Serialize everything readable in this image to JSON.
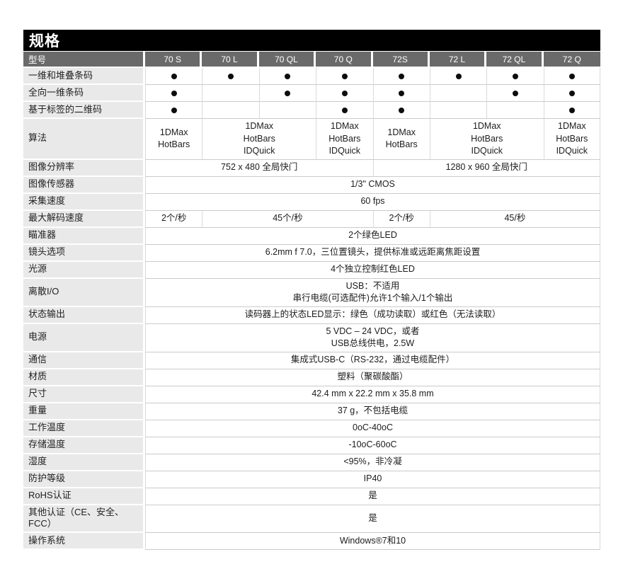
{
  "title": "规格",
  "colors": {
    "title_bar_bg": "#000000",
    "header_row_bg": "#6a6a6a",
    "label_cell_bg": "#e9e9e9",
    "grid_line": "#cbcbcb",
    "bullet": "#0d0d0d"
  },
  "table": {
    "header": {
      "label": "型号",
      "models": [
        "70 S",
        "70 L",
        "70 QL",
        "70 Q",
        "72S",
        "72 L",
        "72 QL",
        "72 Q"
      ]
    },
    "rows": [
      {
        "label": "一维和堆叠条码",
        "type": "bullets",
        "flags": [
          1,
          1,
          1,
          1,
          1,
          1,
          1,
          1
        ]
      },
      {
        "label": "全向一维条码",
        "type": "bullets",
        "flags": [
          1,
          0,
          1,
          1,
          1,
          0,
          1,
          1
        ]
      },
      {
        "label": "基于标签的二维码",
        "type": "bullets",
        "flags": [
          1,
          0,
          0,
          1,
          1,
          0,
          0,
          1
        ]
      },
      {
        "label": "算法",
        "cells": [
          {
            "span": 1,
            "lines": [
              "1DMax",
              "HotBars"
            ]
          },
          {
            "span": 2,
            "lines": [
              "1DMax",
              "HotBars",
              "IDQuick"
            ]
          },
          {
            "span": 1,
            "lines": [
              "1DMax",
              "HotBars",
              "IDQuick"
            ]
          },
          {
            "span": 1,
            "lines": [
              "1DMax",
              "HotBars"
            ]
          },
          {
            "span": 2,
            "lines": [
              "1DMax",
              "HotBars",
              "IDQuick"
            ]
          },
          {
            "span": 1,
            "lines": [
              "1DMax",
              "HotBars",
              "IDQuick"
            ]
          }
        ]
      },
      {
        "label": "图像分辨率",
        "cells": [
          {
            "span": 4,
            "text": "752 x 480 全局快门"
          },
          {
            "span": 4,
            "text": "1280 x 960 全局快门"
          }
        ]
      },
      {
        "label": "图像传感器",
        "cells": [
          {
            "span": 8,
            "text": "1/3\" CMOS"
          }
        ]
      },
      {
        "label": "采集速度",
        "cells": [
          {
            "span": 8,
            "text": "60 fps"
          }
        ]
      },
      {
        "label": "最大解码速度",
        "cells": [
          {
            "span": 1,
            "text": "2个/秒"
          },
          {
            "span": 3,
            "text": "45个/秒"
          },
          {
            "span": 1,
            "text": "2个/秒"
          },
          {
            "span": 3,
            "text": "45/秒"
          }
        ]
      },
      {
        "label": "瞄准器",
        "cells": [
          {
            "span": 8,
            "text": "2个绿色LED"
          }
        ]
      },
      {
        "label": "镜头选项",
        "cells": [
          {
            "span": 8,
            "text": "6.2mm f 7.0，三位置镜头，提供标准或远距离焦距设置"
          }
        ]
      },
      {
        "label": "光源",
        "cells": [
          {
            "span": 8,
            "text": "4个独立控制红色LED"
          }
        ]
      },
      {
        "label": "离散I/O",
        "cells": [
          {
            "span": 8,
            "lines": [
              "USB：不适用",
              "串行电缆(可选配件)允许1个输入/1个输出"
            ]
          }
        ]
      },
      {
        "label": "状态输出",
        "cells": [
          {
            "span": 8,
            "text": "读码器上的状态LED显示：绿色（成功读取）或红色（无法读取）"
          }
        ]
      },
      {
        "label": "电源",
        "cells": [
          {
            "span": 8,
            "lines": [
              "5 VDC – 24 VDC，或者",
              "USB总线供电，2.5W"
            ]
          }
        ]
      },
      {
        "label": "通信",
        "cells": [
          {
            "span": 8,
            "text": "集成式USB-C（RS-232，通过电缆配件）"
          }
        ]
      },
      {
        "label": "材质",
        "cells": [
          {
            "span": 8,
            "text": "塑料（聚碳酸酯）"
          }
        ]
      },
      {
        "label": "尺寸",
        "cells": [
          {
            "span": 8,
            "text": "42.4 mm x 22.2 mm x 35.8 mm"
          }
        ]
      },
      {
        "label": "重量",
        "cells": [
          {
            "span": 8,
            "text": "37 g，不包括电缆"
          }
        ]
      },
      {
        "label": "工作温度",
        "cells": [
          {
            "span": 8,
            "text": "0oC-40oC"
          }
        ]
      },
      {
        "label": "存储温度",
        "cells": [
          {
            "span": 8,
            "text": "-10oC-60oC"
          }
        ]
      },
      {
        "label": "湿度",
        "cells": [
          {
            "span": 8,
            "text": "<95%，非冷凝"
          }
        ]
      },
      {
        "label": "防护等级",
        "cells": [
          {
            "span": 8,
            "text": "IP40"
          }
        ]
      },
      {
        "label": "RoHS认证",
        "cells": [
          {
            "span": 8,
            "text": "是"
          }
        ]
      },
      {
        "label": "其他认证（CE、安全、FCC）",
        "cells": [
          {
            "span": 8,
            "text": "是"
          }
        ]
      },
      {
        "label": "操作系统",
        "cells": [
          {
            "span": 8,
            "text": "Windows®7和10"
          }
        ]
      }
    ]
  }
}
